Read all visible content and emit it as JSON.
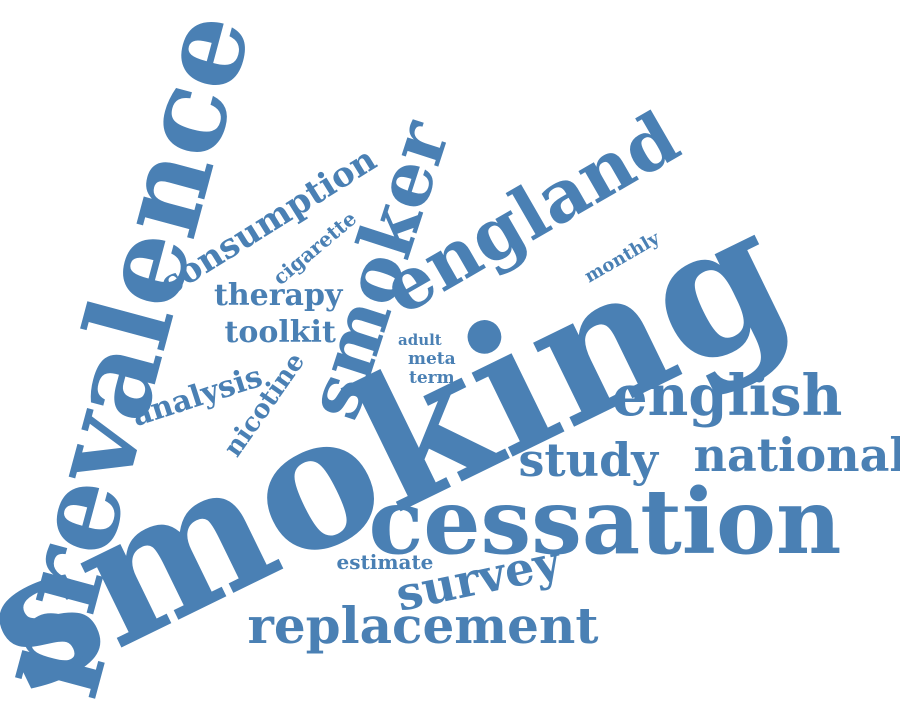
{
  "color": "#4a80b4",
  "words": [
    {
      "text": "smoking",
      "weight": 1.0
    },
    {
      "text": "prevalence",
      "weight": 0.8
    },
    {
      "text": "cessation",
      "weight": 0.62
    },
    {
      "text": "smoker",
      "weight": 0.5
    },
    {
      "text": "england",
      "weight": 0.5
    },
    {
      "text": "english",
      "weight": 0.38
    },
    {
      "text": "replacement",
      "weight": 0.34
    },
    {
      "text": "survey",
      "weight": 0.31
    },
    {
      "text": "study",
      "weight": 0.31
    },
    {
      "text": "national",
      "weight": 0.31
    },
    {
      "text": "consumption",
      "weight": 0.23
    },
    {
      "text": "therapy",
      "weight": 0.2
    },
    {
      "text": "toolkit",
      "weight": 0.2
    },
    {
      "text": "analysis",
      "weight": 0.2
    },
    {
      "text": "nicotine",
      "weight": 0.18
    },
    {
      "text": "cigarette",
      "weight": 0.14
    },
    {
      "text": "monthly",
      "weight": 0.13
    },
    {
      "text": "estimate",
      "weight": 0.13
    },
    {
      "text": "adult",
      "weight": 0.1
    },
    {
      "text": "meta",
      "weight": 0.1
    },
    {
      "text": "term",
      "weight": 0.1
    }
  ]
}
